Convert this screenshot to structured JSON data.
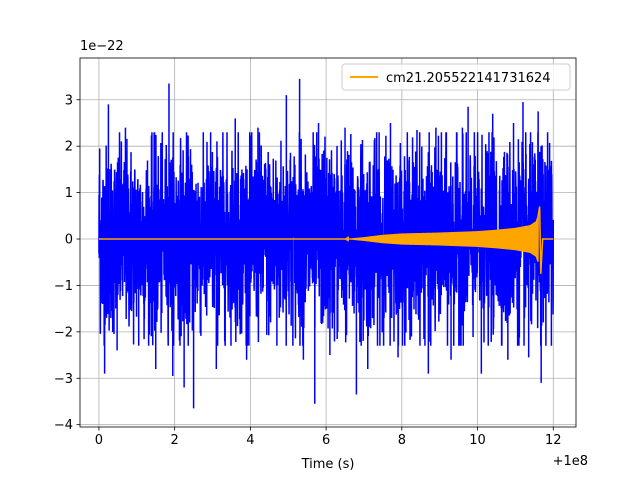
{
  "chart_data": {
    "type": "line",
    "xlabel": "Time (s)",
    "ylabel": "",
    "x_offset_label": "+1e8",
    "y_exponent_label": "1e−22",
    "xlim": [
      -0.5,
      12.6
    ],
    "ylim": [
      -4.05,
      3.9
    ],
    "x_ticks": [
      0,
      2,
      4,
      6,
      8,
      10,
      12
    ],
    "x_tick_labels": [
      "0",
      "2",
      "4",
      "6",
      "8",
      "10",
      "12"
    ],
    "y_ticks": [
      -4,
      -3,
      -2,
      -1,
      0,
      1,
      2,
      3
    ],
    "y_tick_labels": [
      "−4",
      "−3",
      "−2",
      "−1",
      "0",
      "1",
      "2",
      "3"
    ],
    "grid": true,
    "legend_position": "top-right",
    "series": [
      {
        "name": "",
        "color": "#0000ff",
        "description_note": "dense noise time series",
        "x_range": [
          0,
          12
        ],
        "typical_envelope": 1.6,
        "spikes": [
          {
            "x": 0.02,
            "y": 1.95
          },
          {
            "x": 0.1,
            "y": -1.4
          },
          {
            "x": 0.2,
            "y": -1.7
          },
          {
            "x": 0.15,
            "y": -2.9
          },
          {
            "x": 0.25,
            "y": 2.9
          },
          {
            "x": 0.48,
            "y": -2.4
          },
          {
            "x": 0.7,
            "y": 2.4
          },
          {
            "x": 1.05,
            "y": -2.3
          },
          {
            "x": 1.4,
            "y": 2.3
          },
          {
            "x": 1.5,
            "y": -2.8
          },
          {
            "x": 1.85,
            "y": 3.35
          },
          {
            "x": 1.95,
            "y": -2.95
          },
          {
            "x": 2.25,
            "y": -3.2
          },
          {
            "x": 2.5,
            "y": -3.65
          },
          {
            "x": 2.95,
            "y": 2.3
          },
          {
            "x": 3.1,
            "y": -2.8
          },
          {
            "x": 3.6,
            "y": 2.6
          },
          {
            "x": 3.9,
            "y": -2.6
          },
          {
            "x": 4.2,
            "y": 2.4
          },
          {
            "x": 4.7,
            "y": -2.3
          },
          {
            "x": 4.95,
            "y": 3.1
          },
          {
            "x": 5.3,
            "y": 3.45
          },
          {
            "x": 5.4,
            "y": -2.6
          },
          {
            "x": 5.7,
            "y": -3.55
          },
          {
            "x": 5.8,
            "y": 2.5
          },
          {
            "x": 6.1,
            "y": -2.5
          },
          {
            "x": 6.5,
            "y": 2.4
          },
          {
            "x": 6.8,
            "y": -3.35
          },
          {
            "x": 7.1,
            "y": -2.8
          },
          {
            "x": 7.4,
            "y": 2.3
          },
          {
            "x": 7.7,
            "y": 2.5
          },
          {
            "x": 7.9,
            "y": -2.55
          },
          {
            "x": 8.4,
            "y": 2.35
          },
          {
            "x": 8.7,
            "y": -2.9
          },
          {
            "x": 8.9,
            "y": 2.4
          },
          {
            "x": 9.3,
            "y": -2.6
          },
          {
            "x": 9.6,
            "y": 2.4
          },
          {
            "x": 9.75,
            "y": 2.85
          },
          {
            "x": 10.1,
            "y": -2.9
          },
          {
            "x": 10.4,
            "y": 2.7
          },
          {
            "x": 10.8,
            "y": -2.6
          },
          {
            "x": 10.95,
            "y": 2.5
          },
          {
            "x": 11.2,
            "y": 2.95
          },
          {
            "x": 11.35,
            "y": -2.55
          },
          {
            "x": 11.6,
            "y": 2.75
          },
          {
            "x": 11.68,
            "y": -3.1
          },
          {
            "x": 11.85,
            "y": 2.3
          },
          {
            "x": 11.95,
            "y": -2.3
          }
        ]
      },
      {
        "name": "cm21.205522141731624",
        "color": "#ffa500",
        "description_note": "chirp waveform with growing amplitude",
        "envelope": [
          {
            "x": 0,
            "y": 0.0
          },
          {
            "x": 6.5,
            "y": 0.0
          },
          {
            "x": 7.0,
            "y": 0.04
          },
          {
            "x": 7.5,
            "y": 0.09
          },
          {
            "x": 8.0,
            "y": 0.12
          },
          {
            "x": 9.0,
            "y": 0.14
          },
          {
            "x": 10.0,
            "y": 0.17
          },
          {
            "x": 10.5,
            "y": 0.2
          },
          {
            "x": 11.0,
            "y": 0.24
          },
          {
            "x": 11.4,
            "y": 0.3
          },
          {
            "x": 11.55,
            "y": 0.38
          },
          {
            "x": 11.62,
            "y": 0.55
          },
          {
            "x": 11.66,
            "y": 0.7
          },
          {
            "x": 11.68,
            "y": -0.75
          },
          {
            "x": 11.72,
            "y": 0.0
          },
          {
            "x": 12.0,
            "y": 0.0
          }
        ]
      }
    ]
  }
}
